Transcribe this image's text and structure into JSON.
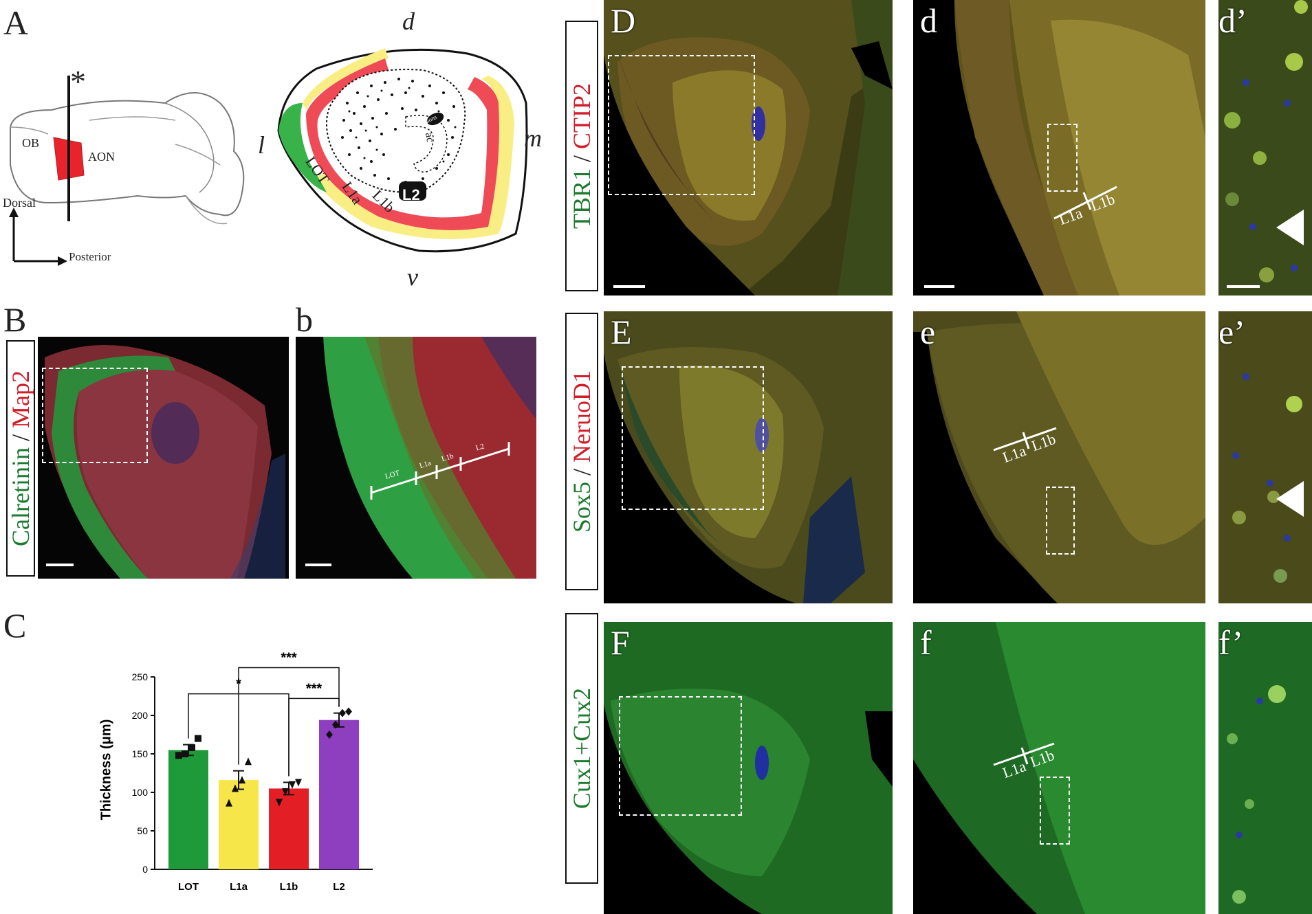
{
  "panels": {
    "A": "A",
    "B": "B",
    "b": "b",
    "C": "C",
    "D": "D",
    "d": "d",
    "d_prime": "d’",
    "E": "E",
    "e": "e",
    "e_prime": "e’",
    "F": "F",
    "f": "f",
    "f_prime": "f’"
  },
  "brain_schematic": {
    "ob": "OB",
    "aon": "AON",
    "asterisk": "*",
    "dorsal": "Dorsal",
    "posterior": "Posterior"
  },
  "aon_schematic": {
    "d": "d",
    "l": "l",
    "m": "m",
    "v": "v",
    "lot": "LOT",
    "l1a": "L1a",
    "l1b": "L1b",
    "l2": "L2",
    "ac": "ac",
    "aon_s": "aons"
  },
  "stain_labels": {
    "B_green": "Calretinin",
    "B_sep": " / ",
    "B_red": "Map2",
    "D_green": "TBR1",
    "D_sep": " / ",
    "D_red": "CTIP2",
    "E_green": "Sox5",
    "E_sep": " / ",
    "E_red": "NeruoD1",
    "F_green": "Cux1+Cux2"
  },
  "layer_marks": {
    "b_lot": "LOT",
    "b_l1a": "L1a",
    "b_l1b": "L1b",
    "b_l2": "L2",
    "l1a": "L1a",
    "l1b": "L1b"
  },
  "chart_data": {
    "type": "bar",
    "title": "",
    "xlabel": "",
    "ylabel": "Thickness (μm)",
    "ylim": [
      0,
      250
    ],
    "yticks": [
      0,
      50,
      100,
      150,
      200,
      250
    ],
    "categories": [
      "LOT",
      "L1a",
      "L1b",
      "L2"
    ],
    "values": [
      155,
      116,
      105,
      194
    ],
    "errors": [
      7,
      12,
      8,
      9
    ],
    "colors": [
      "#1f9a3a",
      "#f7e64a",
      "#e31e25",
      "#8e3fbf"
    ],
    "points": [
      [
        148,
        150,
        158,
        170
      ],
      [
        86,
        105,
        116,
        140
      ],
      [
        87,
        101,
        110,
        113
      ],
      [
        175,
        188,
        203,
        205
      ]
    ],
    "markers": [
      "square",
      "triangle",
      "triangle-down",
      "diamond"
    ],
    "significance": [
      {
        "from": 2,
        "to": 3,
        "label": "***",
        "level": 0
      },
      {
        "from": 1,
        "to": 3,
        "label": "***",
        "level": 1
      },
      {
        "from": 0,
        "to": 2,
        "label": "*",
        "level": 2
      }
    ]
  }
}
